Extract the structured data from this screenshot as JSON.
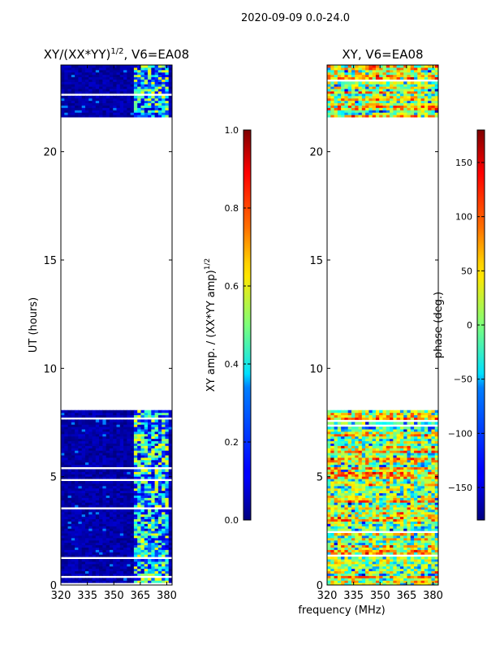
{
  "figure_title": "2020-09-09 0.0-24.0",
  "x_axis_label": "frequency (MHz)",
  "chart_data": [
    {
      "type": "heatmap",
      "title": "XY/(XX*YY)",
      "title_exp": "1/2",
      "title_suffix": ", V6=EA08",
      "xlabel": "",
      "ylabel": "UT (hours)",
      "xlim": [
        320,
        383
      ],
      "ylim": [
        0,
        24
      ],
      "xticks": [
        320,
        335,
        350,
        365,
        380
      ],
      "yticks": [
        0,
        5,
        10,
        15,
        20
      ],
      "data_ut_ranges": [
        [
          0,
          8.1
        ],
        [
          21.6,
          24
        ]
      ],
      "bright_band_mhz": [
        361,
        382
      ],
      "colorbar": {
        "label": "XY amp. / (XX*YY amp)",
        "label_exp": "1/2",
        "min": 0.0,
        "max": 1.0,
        "ticks": [
          "0.0",
          "0.2",
          "0.4",
          "0.6",
          "0.8",
          "1.0"
        ],
        "tick_values": [
          0,
          0.2,
          0.4,
          0.6,
          0.8,
          1.0
        ],
        "colormap": "jet"
      }
    },
    {
      "type": "heatmap",
      "title": "XY, V6=EA08",
      "xlabel": "frequency (MHz)",
      "ylabel": "",
      "xlim": [
        320,
        383
      ],
      "ylim": [
        0,
        24
      ],
      "xticks": [
        320,
        335,
        350,
        365,
        380
      ],
      "yticks": [
        0,
        5,
        10,
        15,
        20
      ],
      "data_ut_ranges": [
        [
          0,
          8.1
        ],
        [
          21.6,
          24
        ]
      ],
      "colorbar": {
        "label": "phase (deg.)",
        "min": -180,
        "max": 180,
        "ticks": [
          "−150",
          "−100",
          "−50",
          "0",
          "50",
          "100",
          "150"
        ],
        "tick_values": [
          -150,
          -100,
          -50,
          0,
          50,
          100,
          150
        ],
        "colormap": "jet"
      }
    }
  ]
}
